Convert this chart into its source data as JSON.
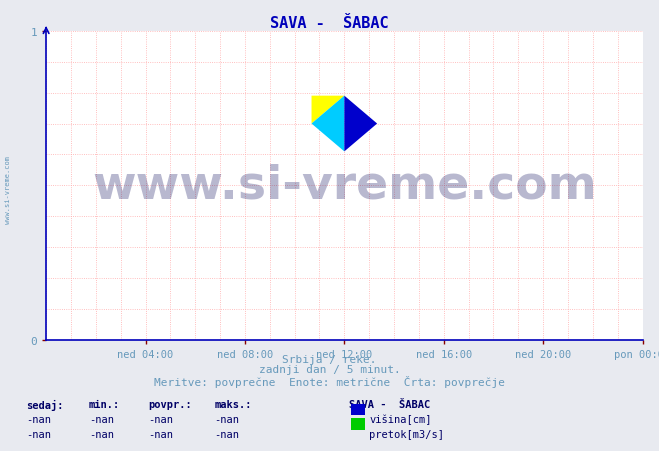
{
  "title": "SAVA -  ŠABAC",
  "title_color": "#0000bb",
  "bg_color": "#e8eaf0",
  "plot_bg_color": "#ffffff",
  "grid_color": "#ffaaaa",
  "axis_color": "#0000bb",
  "tick_color": "#880000",
  "xlabel_ticks": [
    "ned 04:00",
    "ned 08:00",
    "ned 12:00",
    "ned 16:00",
    "ned 20:00",
    "pon 00:00"
  ],
  "xtick_positions": [
    48,
    96,
    144,
    192,
    240,
    288
  ],
  "yticks": [
    0,
    1
  ],
  "ylim": [
    0,
    1
  ],
  "xlim": [
    0,
    288
  ],
  "subtitle_line1": "Srbija / reke.",
  "subtitle_line2": "zadnji dan / 5 minut.",
  "subtitle_line3": "Meritve: povprečne  Enote: metrične  Črta: povprečje",
  "subtitle_color": "#6699bb",
  "watermark_text": "www.si-vreme.com",
  "watermark_color": "#000055",
  "watermark_alpha": 0.28,
  "watermark_fontsize": 34,
  "side_text": "www.si-vreme.com",
  "side_color": "#6699bb",
  "legend_title": "SAVA -  ŠABAC",
  "legend_title_color": "#000066",
  "legend_items": [
    {
      "label": "višina[cm]",
      "color": "#0000cc"
    },
    {
      "label": "pretok[m3/s]",
      "color": "#00cc00"
    }
  ],
  "stats_headers": [
    "sedaj:",
    "min.:",
    "povpr.:",
    "maks.:"
  ],
  "stats_values": [
    [
      "-nan",
      "-nan",
      "-nan",
      "-nan"
    ],
    [
      "-nan",
      "-nan",
      "-nan",
      "-nan"
    ]
  ],
  "stats_color": "#000066",
  "logo_colors": {
    "yellow": "#ffff00",
    "cyan": "#00ccff",
    "blue": "#0000cc"
  },
  "num_vgrid": 25,
  "num_hgrid": 11
}
